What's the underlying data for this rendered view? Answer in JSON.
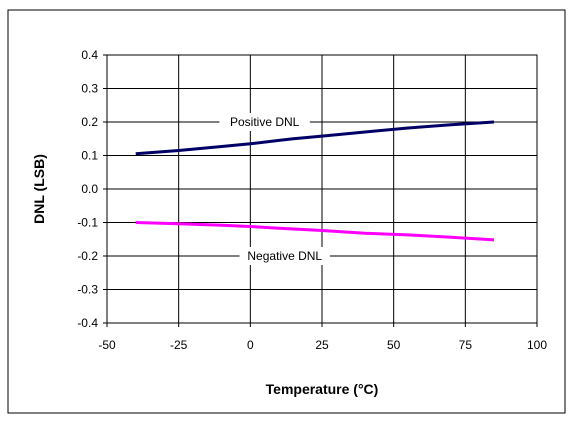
{
  "chart_data": {
    "type": "line",
    "title": "",
    "xlabel": "Temperature (°C)",
    "ylabel": "DNL (LSB)",
    "xlim": [
      -50,
      100
    ],
    "ylim": [
      -0.4,
      0.4
    ],
    "x_ticks": [
      "-50",
      "-25",
      "0",
      "25",
      "50",
      "75",
      "100"
    ],
    "y_ticks": [
      "0.4",
      "0.3",
      "0.2",
      "0.1",
      "0.0",
      "-0.1",
      "-0.2",
      "-0.3",
      "-0.4"
    ],
    "grid": true,
    "legend": "none",
    "series": [
      {
        "name": "Positive DNL",
        "color": "#000066",
        "x": [
          -40,
          -25,
          -10,
          0,
          10,
          15,
          25,
          40,
          55,
          70,
          85
        ],
        "y": [
          0.105,
          0.115,
          0.127,
          0.135,
          0.145,
          0.15,
          0.158,
          0.17,
          0.182,
          0.192,
          0.2
        ]
      },
      {
        "name": "Negative DNL",
        "color": "#ff00ff",
        "x": [
          -40,
          -25,
          -10,
          0,
          10,
          25,
          40,
          55,
          70,
          85
        ],
        "y": [
          -0.1,
          -0.104,
          -0.108,
          -0.112,
          -0.117,
          -0.124,
          -0.132,
          -0.137,
          -0.144,
          -0.152
        ]
      }
    ],
    "annotations": [
      {
        "text": "Positive DNL",
        "x": 5,
        "y": 0.2
      },
      {
        "text": "Negative DNL",
        "x": 12,
        "y": -0.2
      }
    ]
  }
}
